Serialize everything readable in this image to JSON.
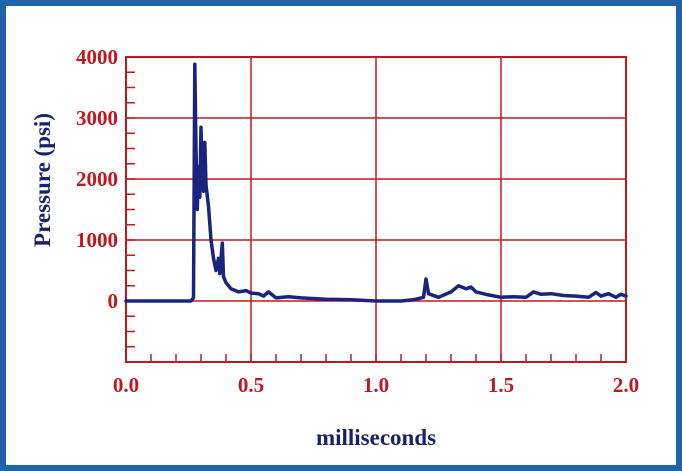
{
  "chart_data": {
    "type": "line",
    "title": "",
    "xlabel": "milliseconds",
    "ylabel": "Pressure (psi)",
    "xlim": [
      0.0,
      2.0
    ],
    "ylim": [
      -1000,
      4000
    ],
    "grid": true,
    "x_ticks": [
      "0.0",
      "0.5",
      "1.0",
      "1.5",
      "2.0"
    ],
    "y_ticks": [
      "4000",
      "3000",
      "2000",
      "1000",
      "0"
    ],
    "colors": {
      "border": "#1f63a8",
      "axes": "#c0181e",
      "labels": "#c0181e",
      "ylabel": "#16236b",
      "xlabel": "#16236b",
      "series": "#1a237e"
    },
    "series": [
      {
        "name": "",
        "points": [
          [
            0.0,
            0
          ],
          [
            0.1,
            0
          ],
          [
            0.2,
            0
          ],
          [
            0.26,
            0
          ],
          [
            0.27,
            50
          ],
          [
            0.275,
            3880
          ],
          [
            0.28,
            2500
          ],
          [
            0.285,
            1500
          ],
          [
            0.29,
            2200
          ],
          [
            0.295,
            1700
          ],
          [
            0.3,
            2850
          ],
          [
            0.305,
            2000
          ],
          [
            0.31,
            1800
          ],
          [
            0.315,
            2600
          ],
          [
            0.32,
            1900
          ],
          [
            0.33,
            1550
          ],
          [
            0.34,
            1000
          ],
          [
            0.35,
            700
          ],
          [
            0.36,
            500
          ],
          [
            0.37,
            700
          ],
          [
            0.375,
            450
          ],
          [
            0.385,
            950
          ],
          [
            0.39,
            400
          ],
          [
            0.4,
            300
          ],
          [
            0.42,
            200
          ],
          [
            0.45,
            150
          ],
          [
            0.48,
            170
          ],
          [
            0.5,
            130
          ],
          [
            0.53,
            120
          ],
          [
            0.55,
            80
          ],
          [
            0.57,
            150
          ],
          [
            0.6,
            50
          ],
          [
            0.65,
            70
          ],
          [
            0.7,
            50
          ],
          [
            0.8,
            30
          ],
          [
            0.9,
            20
          ],
          [
            1.0,
            0
          ],
          [
            1.1,
            0
          ],
          [
            1.15,
            20
          ],
          [
            1.19,
            60
          ],
          [
            1.2,
            360
          ],
          [
            1.21,
            120
          ],
          [
            1.25,
            60
          ],
          [
            1.3,
            150
          ],
          [
            1.33,
            250
          ],
          [
            1.36,
            200
          ],
          [
            1.38,
            230
          ],
          [
            1.4,
            150
          ],
          [
            1.45,
            100
          ],
          [
            1.5,
            60
          ],
          [
            1.55,
            70
          ],
          [
            1.6,
            60
          ],
          [
            1.63,
            150
          ],
          [
            1.66,
            110
          ],
          [
            1.7,
            120
          ],
          [
            1.75,
            90
          ],
          [
            1.8,
            80
          ],
          [
            1.85,
            60
          ],
          [
            1.88,
            140
          ],
          [
            1.9,
            80
          ],
          [
            1.93,
            120
          ],
          [
            1.96,
            60
          ],
          [
            1.98,
            110
          ],
          [
            2.0,
            80
          ]
        ]
      }
    ]
  }
}
